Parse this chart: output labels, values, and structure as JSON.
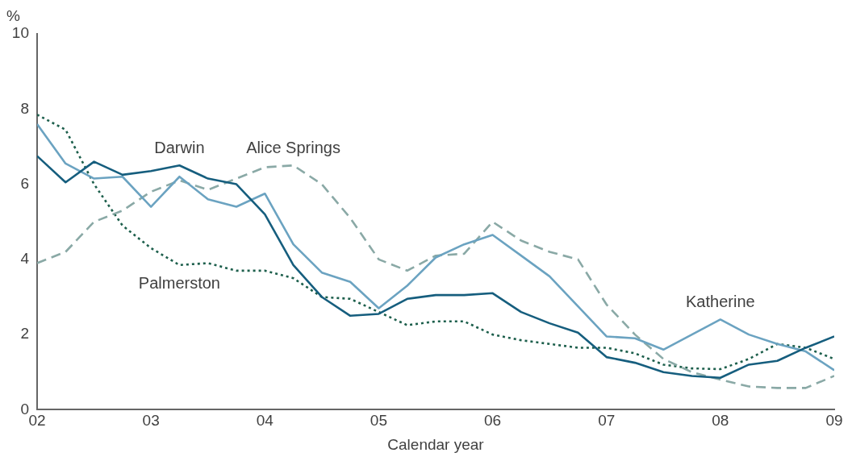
{
  "chart_data": {
    "type": "line",
    "xlabel": "Calendar year",
    "ylabel": "%",
    "x": [
      2002,
      2002.25,
      2002.5,
      2002.75,
      2003,
      2003.25,
      2003.5,
      2003.75,
      2004,
      2004.25,
      2004.5,
      2004.75,
      2005,
      2005.25,
      2005.5,
      2005.75,
      2006,
      2006.25,
      2006.5,
      2006.75,
      2007,
      2007.25,
      2007.5,
      2007.75,
      2008,
      2008.25,
      2008.5,
      2008.75,
      2009
    ],
    "series": [
      {
        "name": "Darwin",
        "color": "#165e7e",
        "line_style": "solid",
        "values": [
          6.75,
          6.05,
          6.6,
          6.25,
          6.35,
          6.5,
          6.15,
          6.0,
          5.2,
          3.85,
          3.0,
          2.5,
          2.55,
          2.95,
          3.05,
          3.05,
          3.1,
          2.6,
          2.3,
          2.05,
          1.4,
          1.25,
          1.0,
          0.9,
          0.85,
          1.2,
          1.3,
          1.65,
          1.95
        ]
      },
      {
        "name": "Katherine",
        "color": "#6ba3c1",
        "line_style": "solid",
        "values": [
          7.6,
          6.55,
          6.15,
          6.2,
          5.4,
          6.2,
          5.6,
          5.4,
          5.75,
          4.4,
          3.65,
          3.4,
          2.7,
          3.3,
          4.05,
          4.4,
          4.65,
          4.1,
          3.55,
          2.75,
          1.95,
          1.9,
          1.6,
          2.0,
          2.4,
          2.0,
          1.75,
          1.55,
          1.05
        ]
      },
      {
        "name": "Alice Springs",
        "color": "#8aa9a6",
        "line_style": "dashed",
        "values": [
          3.9,
          4.2,
          5.0,
          5.3,
          5.8,
          6.1,
          5.85,
          6.15,
          6.45,
          6.5,
          6.0,
          5.1,
          4.0,
          3.7,
          4.1,
          4.15,
          5.0,
          4.5,
          4.2,
          4.0,
          2.8,
          2.0,
          1.35,
          1.0,
          0.8,
          0.62,
          0.58,
          0.58,
          0.9
        ]
      },
      {
        "name": "Palmerston",
        "color": "#1d5f4c",
        "line_style": "dotted",
        "values": [
          7.85,
          7.45,
          6.0,
          4.9,
          4.3,
          3.85,
          3.9,
          3.7,
          3.7,
          3.5,
          3.0,
          2.95,
          2.6,
          2.25,
          2.35,
          2.35,
          2.0,
          1.85,
          1.75,
          1.65,
          1.65,
          1.5,
          1.2,
          1.1,
          1.08,
          1.35,
          1.75,
          1.65,
          1.35
        ]
      }
    ],
    "xlim": [
      2002,
      2009
    ],
    "xticks": [
      {
        "value": 2002,
        "label": "02"
      },
      {
        "value": 2003,
        "label": "03"
      },
      {
        "value": 2004,
        "label": "04"
      },
      {
        "value": 2005,
        "label": "05"
      },
      {
        "value": 2006,
        "label": "06"
      },
      {
        "value": 2007,
        "label": "07"
      },
      {
        "value": 2008,
        "label": "08"
      },
      {
        "value": 2009,
        "label": "09"
      }
    ],
    "ylim": [
      0,
      10
    ],
    "yticks": [
      0,
      2,
      4,
      6,
      8,
      10
    ],
    "grid": false,
    "legend": false,
    "marker": "none"
  }
}
